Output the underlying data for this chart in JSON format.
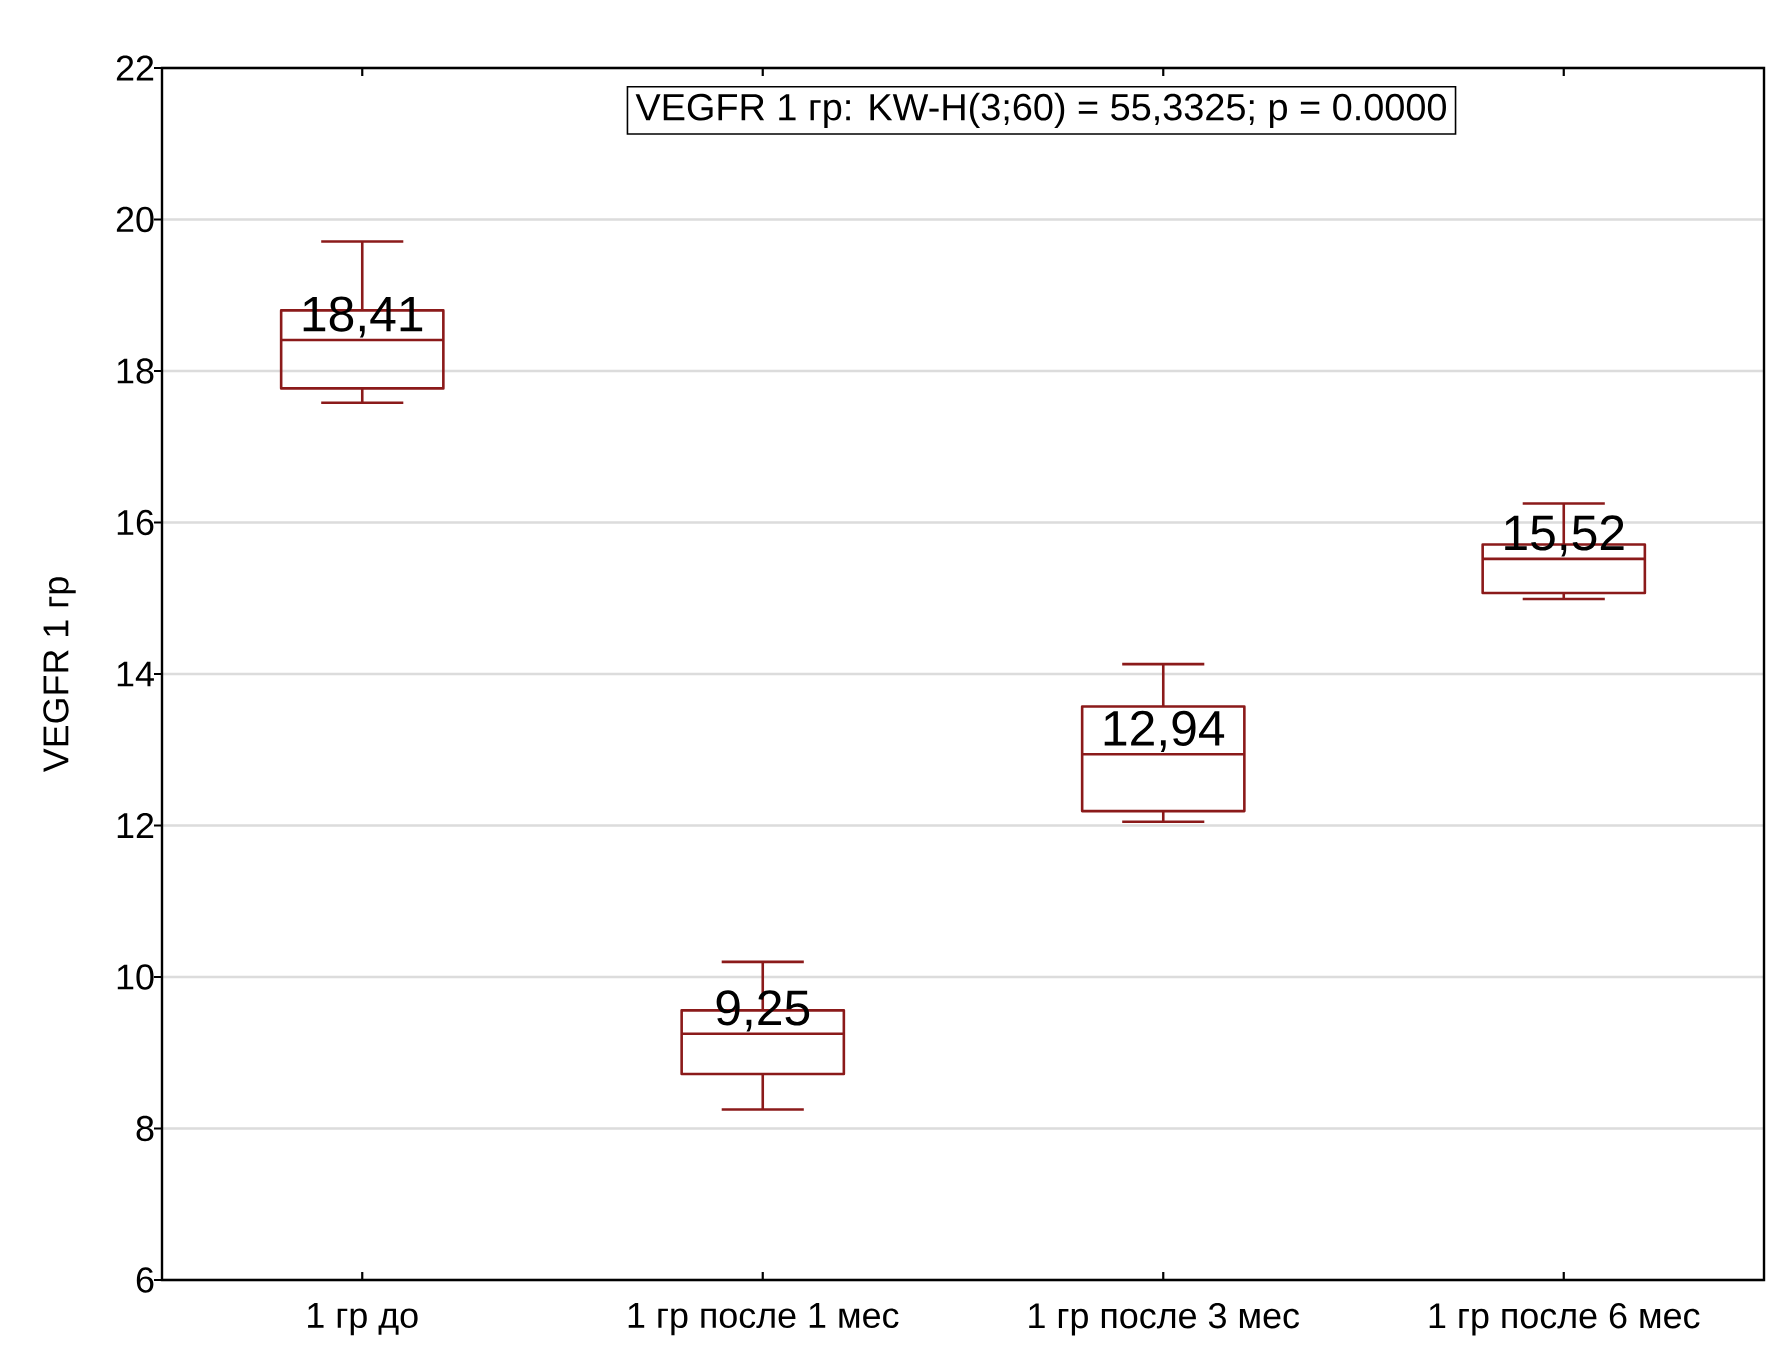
{
  "chart_data": {
    "type": "box",
    "ylabel": "VEGFR 1 гр",
    "annotations": [
      "VEGFR 1 гр: KW-H(3;60) = 55,3325; p = 0.0000"
    ],
    "categories": [
      "1 гр до",
      "1 гр после 1 мес",
      "1 гр после 3 мес",
      "1 гр после 6 мес"
    ],
    "series": [
      {
        "color": "#8b1a1a",
        "boxes": [
          {
            "low": 17.58,
            "q1": 17.77,
            "median": 18.41,
            "q3": 18.8,
            "high": 19.71
          },
          {
            "low": 8.25,
            "q1": 8.72,
            "median": 9.25,
            "q3": 9.56,
            "high": 10.2
          },
          {
            "low": 12.05,
            "q1": 12.19,
            "median": 12.94,
            "q3": 13.57,
            "high": 14.13
          },
          {
            "low": 14.99,
            "q1": 15.07,
            "median": 15.52,
            "q3": 15.71,
            "high": 16.25
          }
        ],
        "value_labels": [
          "18,41",
          "9,25",
          "12,94",
          "15,52"
        ]
      }
    ],
    "ylim": [
      6,
      22
    ],
    "yticks": [
      6,
      8,
      10,
      12,
      14,
      16,
      18,
      20,
      22
    ],
    "grid": "y"
  }
}
